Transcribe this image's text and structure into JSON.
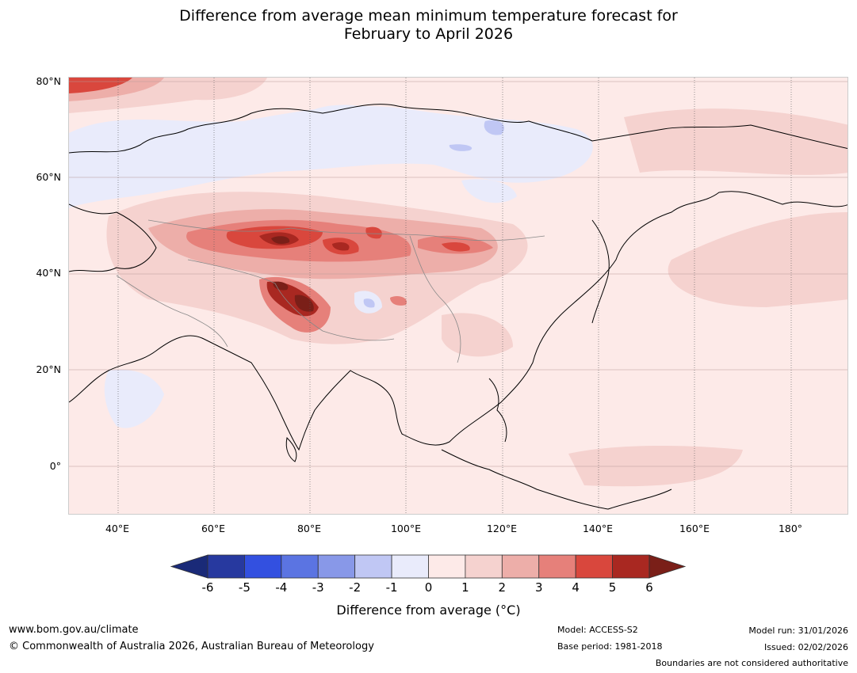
{
  "title_line1": "Difference from average mean minimum temperature forecast for",
  "title_line2": "February to April 2026",
  "map": {
    "lat_labels": [
      "80°N",
      "60°N",
      "40°N",
      "20°N",
      "0°"
    ],
    "lon_labels": [
      "40°E",
      "60°E",
      "80°E",
      "100°E",
      "120°E",
      "140°E",
      "160°E",
      "180°"
    ]
  },
  "colorbar": {
    "ticks": [
      "-6",
      "-5",
      "-4",
      "-3",
      "-2",
      "-1",
      "0",
      "1",
      "2",
      "3",
      "4",
      "5",
      "6"
    ],
    "colors": [
      "#27399f",
      "#3350e0",
      "#5b74e2",
      "#8898e8",
      "#c0c7f4",
      "#e9ebfb",
      "#fdeae8",
      "#f5d2cf",
      "#edaea9",
      "#e6807a",
      "#d9473d",
      "#a92821"
    ],
    "under_color": "#1a2a78",
    "over_color": "#7a1f18",
    "label": "Difference from average (°C)"
  },
  "footer": {
    "website": "www.bom.gov.au/climate",
    "copyright": "© Commonwealth of Australia 2026, Australian Bureau of Meteorology",
    "model": "Model: ACCESS-S2",
    "base_period": "Base period: 1981-2018",
    "model_run": "Model run: 31/01/2026",
    "issued": "Issued: 02/02/2026",
    "disclaimer": "Boundaries are not considered authoritative"
  }
}
